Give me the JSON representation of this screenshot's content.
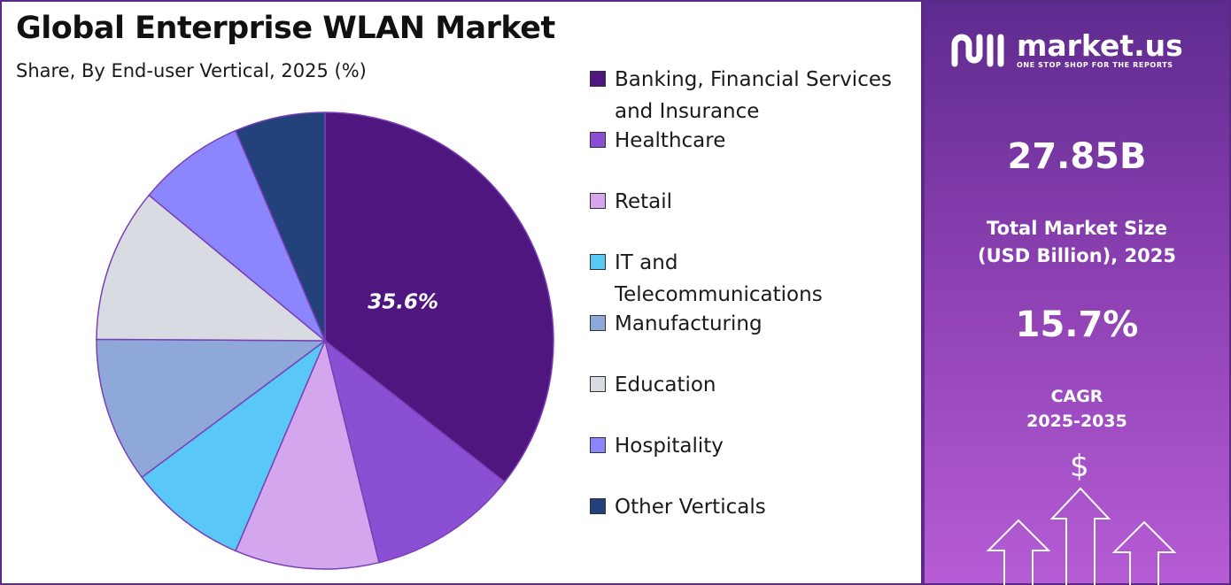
{
  "header": {
    "title": "Global Enterprise WLAN Market",
    "subtitle": "Share, By End-user Vertical, 2025 (%)"
  },
  "chart_data": {
    "type": "pie",
    "title": "Global Enterprise WLAN Market",
    "subtitle": "Share, By End-user Vertical, 2025 (%)",
    "categories": [
      "Banking, Financial Services and Insurance",
      "Healthcare",
      "Retail",
      "IT and Telecommunications",
      "Manufacturing",
      "Education",
      "Hospitality",
      "Other Verticals"
    ],
    "values": [
      35.6,
      10.6,
      10.2,
      8.4,
      10.3,
      10.9,
      7.6,
      6.4
    ],
    "colors": [
      "#4f1680",
      "#8a4fd2",
      "#d4a6ee",
      "#5ac8f6",
      "#8ea8d9",
      "#d9dbe3",
      "#8b86fb",
      "#23417a"
    ],
    "data_labels": [
      {
        "index": 0,
        "text": "35.6%"
      }
    ],
    "legend_position": "right"
  },
  "legend": {
    "items": [
      {
        "lines": [
          "Banking, Financial Services",
          "and Insurance"
        ],
        "color": "#4f1680"
      },
      {
        "lines": [
          "Healthcare"
        ],
        "color": "#8a4fd2"
      },
      {
        "lines": [
          "Retail"
        ],
        "color": "#d4a6ee"
      },
      {
        "lines": [
          "IT and",
          "Telecommunications"
        ],
        "color": "#5ac8f6"
      },
      {
        "lines": [
          "Manufacturing"
        ],
        "color": "#8ea8d9"
      },
      {
        "lines": [
          "Education"
        ],
        "color": "#d9dbe3"
      },
      {
        "lines": [
          "Hospitality"
        ],
        "color": "#8b86fb"
      },
      {
        "lines": [
          "Other Verticals"
        ],
        "color": "#23417a"
      }
    ]
  },
  "sidebar": {
    "brand_name": "market.us",
    "brand_tagline": "ONE STOP SHOP FOR THE REPORTS",
    "logo_icon": "market-us-logo-icon",
    "market_size_value": "27.85B",
    "market_size_label_line1": "Total Market Size",
    "market_size_label_line2": "(USD Billion), 2025",
    "cagr_value": "15.7%",
    "cagr_label_line1": "CAGR",
    "cagr_label_line2": "2025-2035",
    "dollar_symbol": "$",
    "decor_icon": "growth-arrows-icon"
  }
}
